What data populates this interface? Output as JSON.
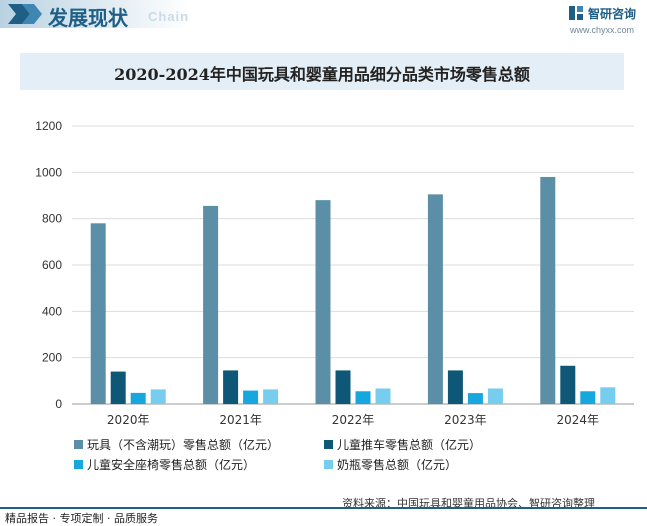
{
  "header": {
    "title": "发展现状",
    "subtitle": "Chain"
  },
  "brand": {
    "name": "智研咨询",
    "url": "www.chyxx.com"
  },
  "chart_title": "2020-2024年中国玩具和婴童用品细分品类市场零售总额",
  "chart_data": {
    "type": "bar",
    "title": "2020-2024年中国玩具和婴童用品细分品类市场零售总额",
    "categories": [
      "2020年",
      "2021年",
      "2022年",
      "2023年",
      "2024年"
    ],
    "ylim": [
      0,
      1200
    ],
    "yticks": [
      0,
      200,
      400,
      600,
      800,
      1000,
      1200
    ],
    "grid": true,
    "legend_position": "bottom",
    "series": [
      {
        "name": "玩具（不含潮玩）零售总额（亿元）",
        "color": "#5b8fa8",
        "values": [
          780,
          855,
          880,
          905,
          980
        ]
      },
      {
        "name": "儿童推车零售总额（亿元）",
        "color": "#0e5777",
        "values": [
          140,
          145,
          145,
          145,
          165
        ]
      },
      {
        "name": "儿童安全座椅零售总额（亿元）",
        "color": "#15a7de",
        "values": [
          48,
          58,
          55,
          47,
          55
        ]
      },
      {
        "name": "奶瓶零售总额（亿元）",
        "color": "#76cdee",
        "values": [
          63,
          63,
          67,
          67,
          72
        ]
      }
    ]
  },
  "source": "资料来源：中国玩具和婴童用品协会、智研咨询整理",
  "footer": "精品报告 · 专项定制 · 品质服务"
}
